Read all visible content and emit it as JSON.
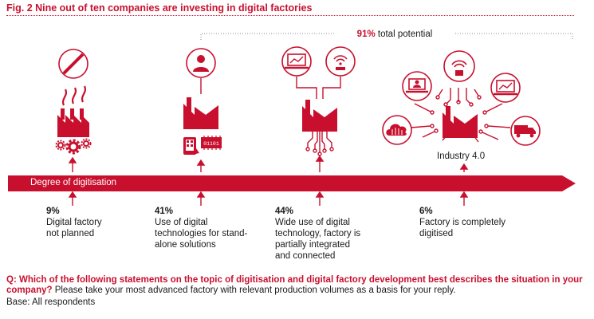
{
  "figure": {
    "title": "Fig. 2  Nine out of ten companies are investing in digital factories",
    "potential_pct": "91%",
    "potential_text": " total potential",
    "axis_label": "Degree of digitisation",
    "industry_label": "Industry 4.0",
    "binary_label": "01101",
    "colors": {
      "accent": "#c8102e",
      "text": "#1a1a1a",
      "background": "#ffffff"
    }
  },
  "stages": [
    {
      "pct": "9%",
      "desc": "Digital factory\nnot planned",
      "icon": "not-planned-icon"
    },
    {
      "pct": "41%",
      "desc": "Use of digital\ntechnologies for stand-\nalone solutions",
      "icon": "user-factory-icon"
    },
    {
      "pct": "44%",
      "desc": "Wide use of digital\ntechnology, factory is\npartially integrated\nand connected",
      "icon": "connected-factory-icon"
    },
    {
      "pct": "6%",
      "desc": "Factory is completely\ndigitised",
      "icon": "industry-4-icon"
    }
  ],
  "question": {
    "q": "Q: Which of the following statements on the topic of digitisation and digital factory development best describes the situation in your company?",
    "note": " Please take your most advanced factory with relevant production volumes as a basis for your reply.",
    "base": "Base: All respondents"
  }
}
